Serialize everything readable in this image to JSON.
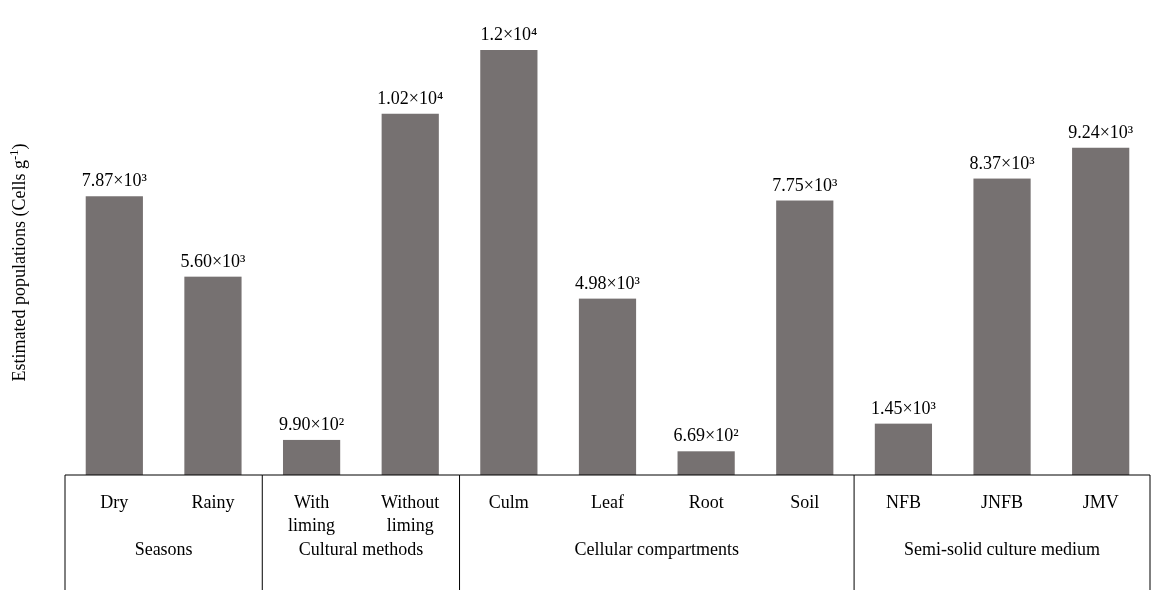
{
  "chart_data": [
    {
      "type": "bar",
      "ylabel": "Estimated populations (Cells g$^{-1}$)",
      "xlabel": "Seasons",
      "categories": [
        "Dry",
        "Rainy"
      ],
      "values": [
        7870,
        5600
      ],
      "value_labels": [
        "7.87×10³",
        "5.60×10³"
      ],
      "color": "#767171"
    },
    {
      "type": "bar",
      "xlabel": "Cultural methods",
      "categories": [
        "With liming",
        "Without liming"
      ],
      "values": [
        990,
        10200
      ],
      "value_labels": [
        "9.90×10²",
        "1.02×10⁴"
      ],
      "color": "#767171"
    },
    {
      "type": "bar",
      "xlabel": "Cellular compartments",
      "categories": [
        "Culm",
        "Leaf",
        "Root",
        "Soil"
      ],
      "values": [
        12000,
        4980,
        669,
        7750
      ],
      "value_labels": [
        "1.2×10⁴",
        "4.98×10³",
        "6.69×10²",
        "7.75×10³"
      ],
      "color": "#767171"
    },
    {
      "type": "bar",
      "xlabel": "Semi-solid culture medium",
      "categories": [
        "NFB",
        "JNFB",
        "JMV"
      ],
      "values": [
        1450,
        8370,
        9240
      ],
      "value_labels": [
        "1.45×10³",
        "8.37×10³",
        "9.24×10³"
      ],
      "color": "#767171"
    }
  ]
}
